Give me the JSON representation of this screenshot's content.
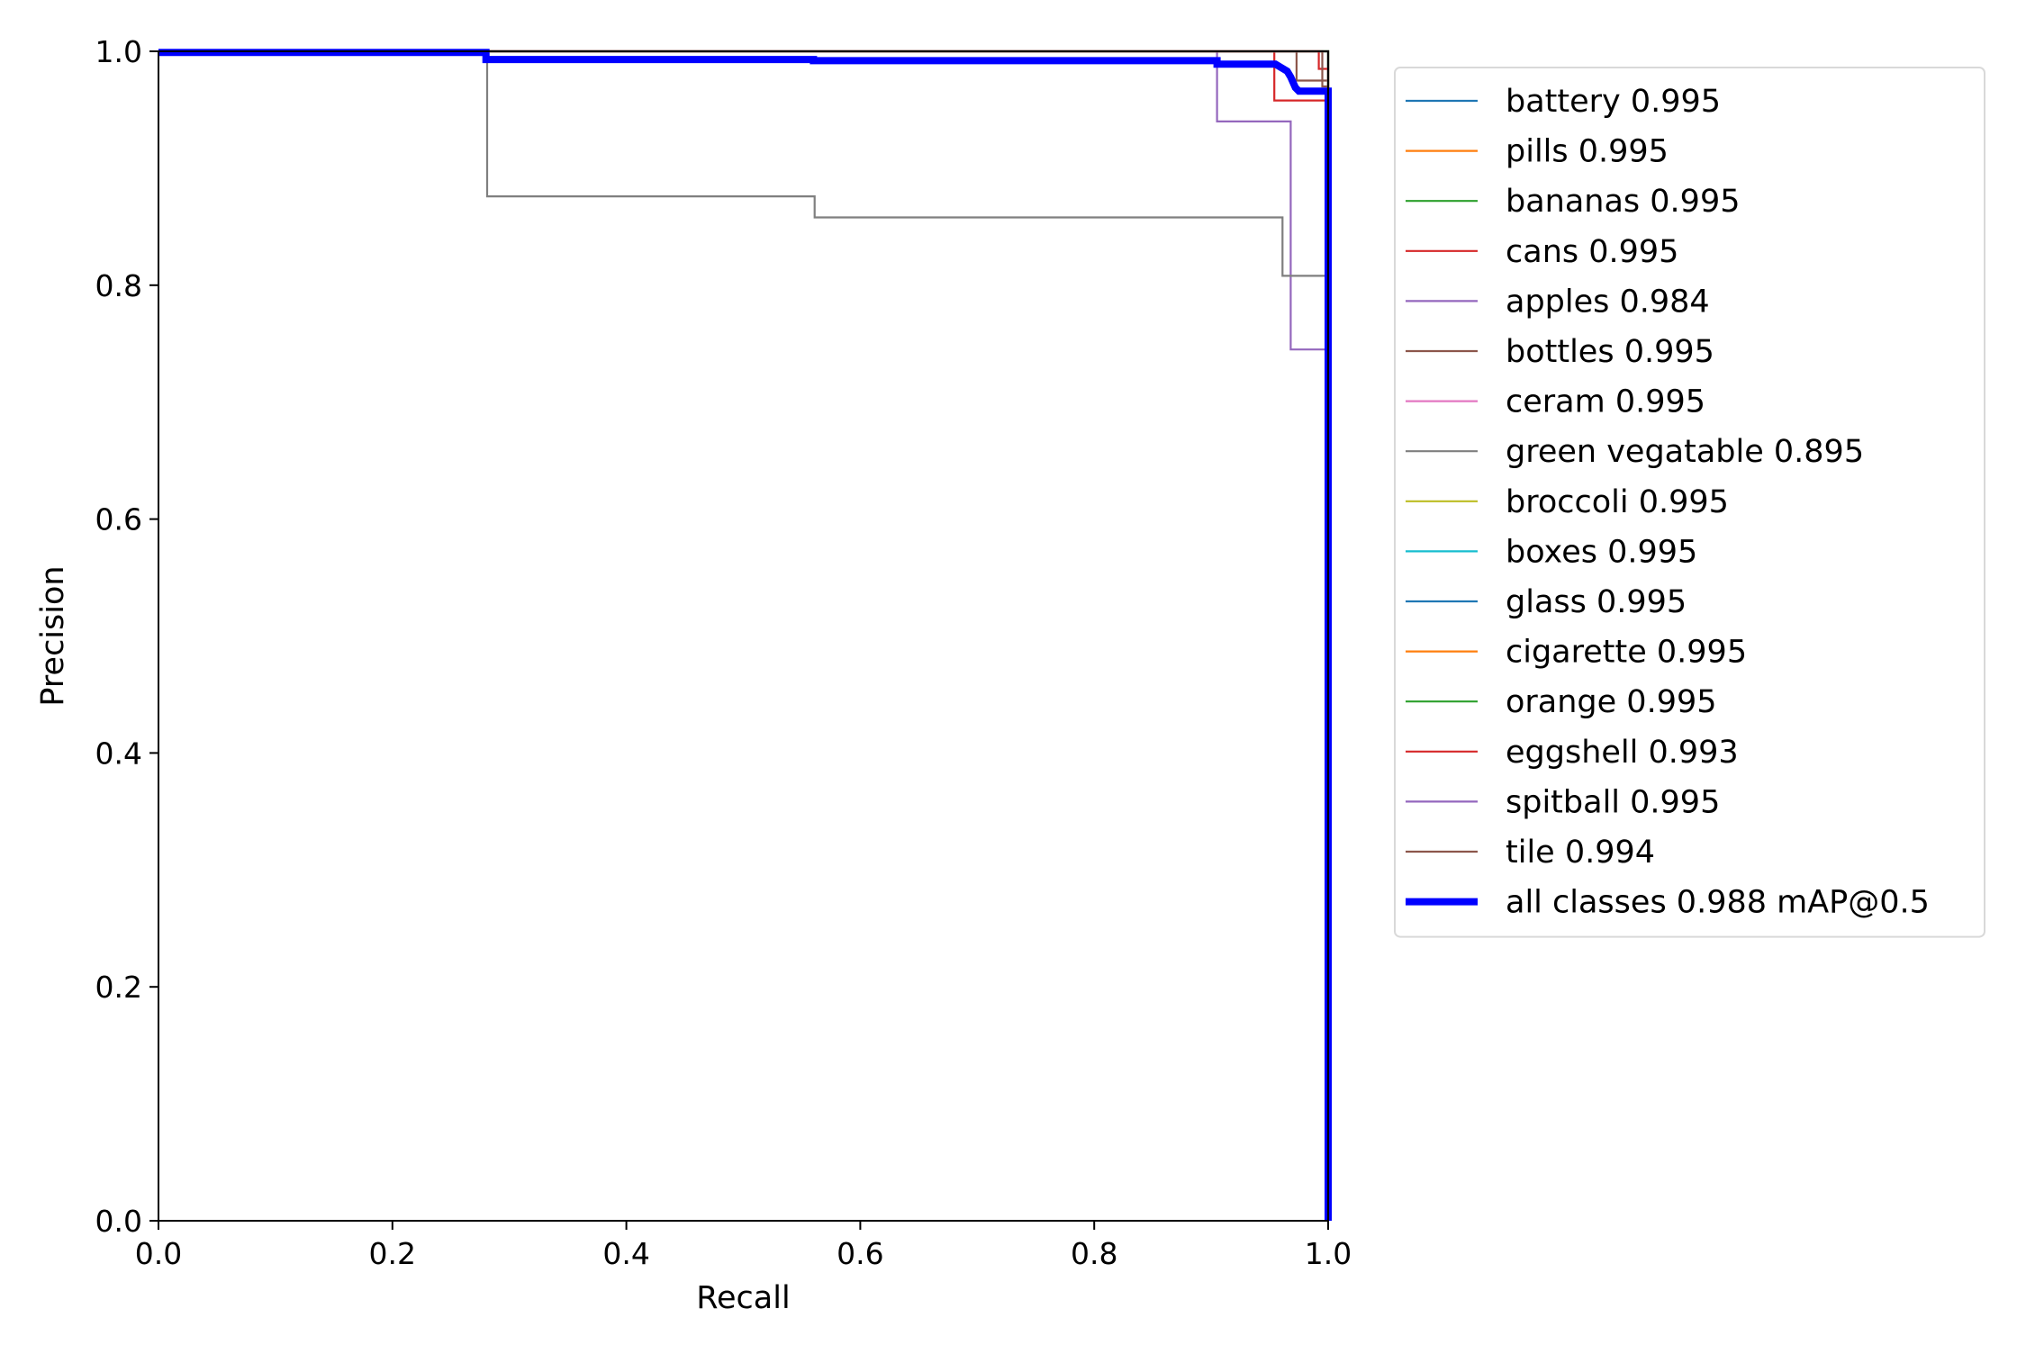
{
  "chart_data": {
    "type": "line",
    "title": "",
    "xlabel": "Recall",
    "ylabel": "Precision",
    "xlim": [
      0,
      1
    ],
    "ylim": [
      0,
      1
    ],
    "xticks": [
      "0.0",
      "0.2",
      "0.4",
      "0.6",
      "0.8",
      "1.0"
    ],
    "yticks": [
      "0.0",
      "0.2",
      "0.4",
      "0.6",
      "0.8",
      "1.0"
    ],
    "grid": false,
    "legend_position": "upper-right-outside",
    "series": [
      {
        "name": "battery 0.995",
        "color": "#1f77b4",
        "x": [
          0,
          1,
          1
        ],
        "y": [
          1,
          1,
          0
        ]
      },
      {
        "name": "pills 0.995",
        "color": "#ff7f0e",
        "x": [
          0,
          1,
          1
        ],
        "y": [
          1,
          1,
          0
        ]
      },
      {
        "name": "bananas 0.995",
        "color": "#2ca02c",
        "x": [
          0,
          1,
          1
        ],
        "y": [
          1,
          1,
          0
        ]
      },
      {
        "name": "cans 0.995",
        "color": "#d62728",
        "x": [
          0,
          0.954,
          0.954,
          1,
          1
        ],
        "y": [
          1,
          1,
          0.958,
          0.958,
          0
        ]
      },
      {
        "name": "apples 0.984",
        "color": "#9467bd",
        "x": [
          0,
          0.905,
          0.905,
          0.968,
          0.968,
          1,
          1
        ],
        "y": [
          1,
          1,
          0.94,
          0.94,
          0.745,
          0.745,
          0
        ]
      },
      {
        "name": "bottles 0.995",
        "color": "#8c564b",
        "x": [
          0,
          0.973,
          0.973,
          1,
          1
        ],
        "y": [
          1,
          1,
          0.975,
          0.975,
          0
        ]
      },
      {
        "name": "ceram 0.995",
        "color": "#e377c2",
        "x": [
          0,
          1,
          1
        ],
        "y": [
          1,
          1,
          0
        ]
      },
      {
        "name": "green vegatable 0.895",
        "color": "#7f7f7f",
        "x": [
          0,
          0.281,
          0.281,
          0.561,
          0.561,
          0.961,
          0.961,
          1,
          1
        ],
        "y": [
          1,
          1,
          0.876,
          0.876,
          0.858,
          0.858,
          0.808,
          0.808,
          0
        ]
      },
      {
        "name": "broccoli 0.995",
        "color": "#bcbd22",
        "x": [
          0,
          1,
          1
        ],
        "y": [
          1,
          1,
          0
        ]
      },
      {
        "name": "boxes 0.995",
        "color": "#17becf",
        "x": [
          0,
          1,
          1
        ],
        "y": [
          1,
          1,
          0
        ]
      },
      {
        "name": "glass 0.995",
        "color": "#1f77b4",
        "x": [
          0,
          1,
          1
        ],
        "y": [
          1,
          1,
          0
        ]
      },
      {
        "name": "cigarette 0.995",
        "color": "#ff7f0e",
        "x": [
          0,
          1,
          1
        ],
        "y": [
          1,
          1,
          0
        ]
      },
      {
        "name": "orange 0.995",
        "color": "#2ca02c",
        "x": [
          0,
          1,
          1
        ],
        "y": [
          1,
          1,
          0
        ]
      },
      {
        "name": "eggshell 0.993",
        "color": "#d62728",
        "x": [
          0,
          0.992,
          0.992,
          1,
          1
        ],
        "y": [
          1,
          1,
          0.985,
          0.985,
          0
        ]
      },
      {
        "name": "spitball 0.995",
        "color": "#9467bd",
        "x": [
          0,
          1,
          1
        ],
        "y": [
          1,
          1,
          0
        ]
      },
      {
        "name": "tile 0.994",
        "color": "#8c564b",
        "x": [
          0,
          0.995,
          0.995,
          1,
          1
        ],
        "y": [
          1,
          1,
          0.97,
          0.97,
          0
        ]
      },
      {
        "name": "all classes 0.988 mAP@0.5",
        "color": "#0000ff",
        "bold": true,
        "x": [
          0,
          0.28,
          0.28,
          0.56,
          0.56,
          0.905,
          0.905,
          0.955,
          0.96,
          0.965,
          0.968,
          0.972,
          0.975,
          1,
          1
        ],
        "y": [
          0.999,
          0.999,
          0.993,
          0.993,
          0.992,
          0.992,
          0.989,
          0.989,
          0.986,
          0.983,
          0.978,
          0.969,
          0.966,
          0.966,
          0
        ]
      }
    ]
  }
}
